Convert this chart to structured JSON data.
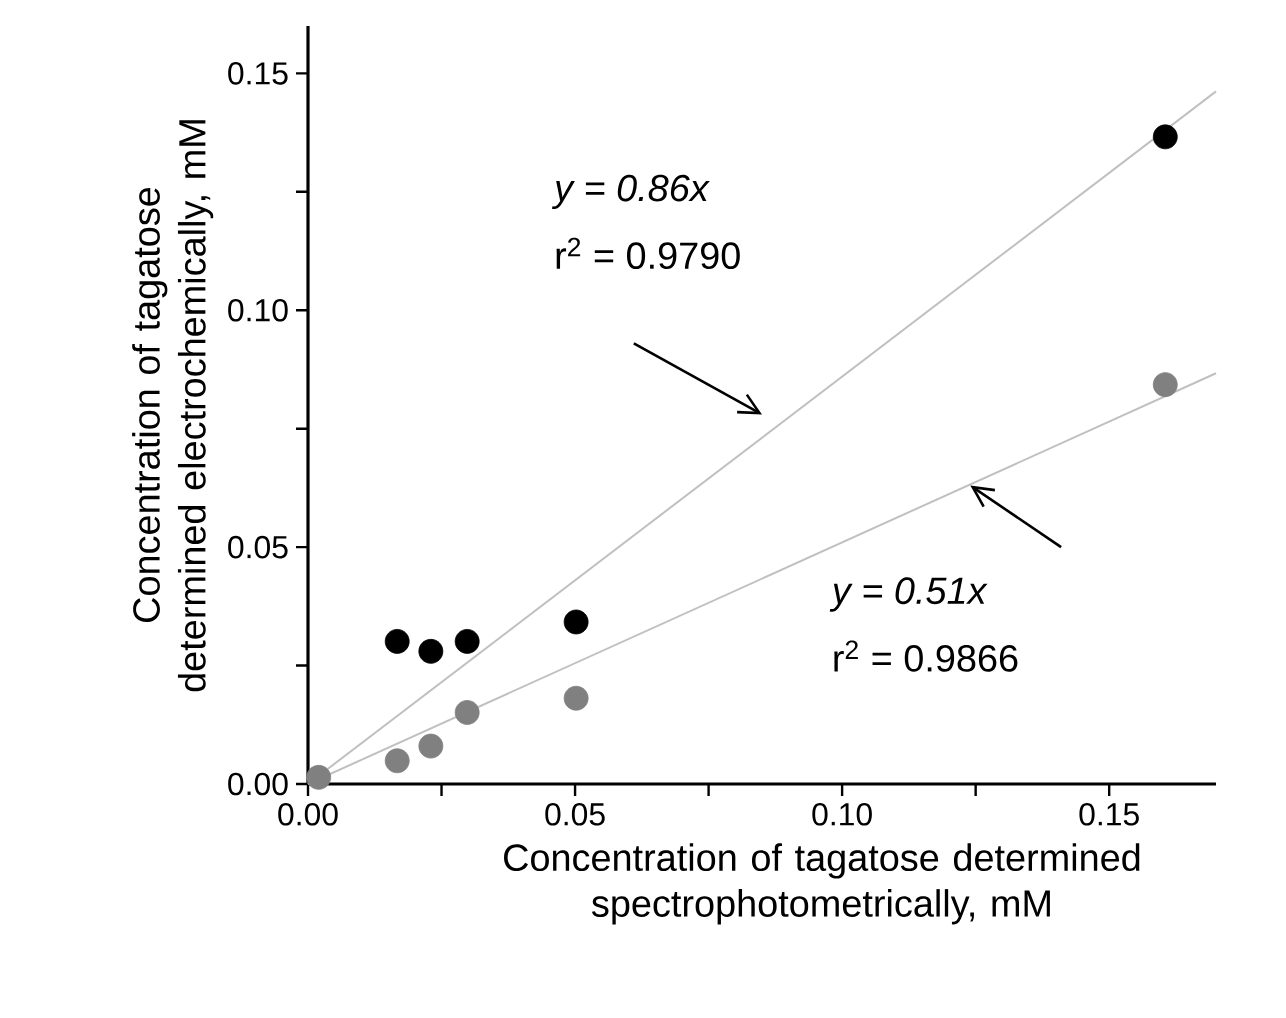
{
  "chart_data": {
    "type": "scatter",
    "xlabel": "Concentration of tagatose determined spectrophotometrically, mM",
    "ylabel": "Concentration of tagatose determined electrochemically, mM",
    "series": [
      {
        "marker": "circle",
        "color": "#000000",
        "x": [
          0.0167,
          0.023,
          0.0298,
          0.0502,
          0.1605
        ],
        "values": [
          0.0301,
          0.028,
          0.0301,
          0.0342,
          0.1366
        ]
      },
      {
        "marker": "circle",
        "color": "#808080",
        "x": [
          0.002,
          0.0167,
          0.023,
          0.0298,
          0.0502,
          0.1605
        ],
        "values": [
          0.0014,
          0.0049,
          0.008,
          0.0151,
          0.0181,
          0.0843
        ]
      },
      {
        "type": "line",
        "marker": "none",
        "line_style": "solid",
        "color": "#c0c0c0",
        "x": [
          0,
          0.17
        ],
        "values": [
          0,
          0.1462
        ]
      },
      {
        "type": "line",
        "marker": "none",
        "line_style": "solid",
        "color": "#c0c0c0",
        "x": [
          0,
          0.17
        ],
        "values": [
          0,
          0.0867
        ]
      }
    ],
    "annotations": [
      "*y = 0.86x*",
      "r$^{2}$ = 0.9790",
      "*y = 0.51x*",
      "r$^{2}$ = 0.9866"
    ],
    "xlim": [
      0,
      0.17
    ],
    "ylim": [
      0,
      0.16
    ],
    "xticks": [
      {
        "value": 0,
        "label": "0.00"
      },
      {
        "value": 0.025,
        "label": null
      },
      {
        "value": 0.05,
        "label": "0.05"
      },
      {
        "value": 0.075,
        "label": null
      },
      {
        "value": 0.1,
        "label": "0.10"
      },
      {
        "value": 0.125,
        "label": null
      },
      {
        "value": 0.15,
        "label": "0.15"
      }
    ],
    "yticks": [
      {
        "value": 0,
        "label": "0.00"
      },
      {
        "value": 0.025,
        "label": null
      },
      {
        "value": 0.05,
        "label": "0.05"
      },
      {
        "value": 0.075,
        "label": null
      },
      {
        "value": 0.1,
        "label": "0.10"
      },
      {
        "value": 0.125,
        "label": null
      },
      {
        "value": 0.15,
        "label": "0.15"
      }
    ],
    "grid": false
  }
}
